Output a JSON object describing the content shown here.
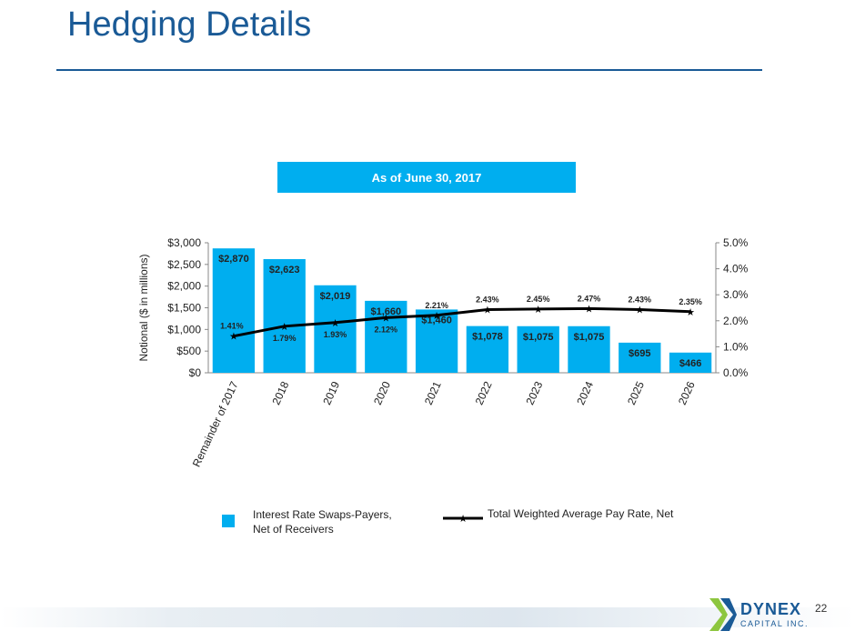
{
  "slide": {
    "title": "Hedging Details",
    "banner": "As of June 30, 2017",
    "page_number": "22",
    "logo_text": "DYNEX",
    "logo_sub": "CAPITAL INC."
  },
  "colors": {
    "bar": "#00aeef",
    "line": "#000000",
    "title": "#1a5a96"
  },
  "chart_data": {
    "type": "bar",
    "categories": [
      "Remainder of 2017",
      "2018",
      "2019",
      "2020",
      "2021",
      "2022",
      "2023",
      "2024",
      "2025",
      "2026"
    ],
    "series": [
      {
        "name": "Interest Rate Swaps-Payers, Net of Receivers",
        "type": "bar",
        "axis": "left",
        "values": [
          2870,
          2623,
          2019,
          1660,
          1460,
          1078,
          1075,
          1075,
          695,
          466
        ],
        "labels": [
          "$2,870",
          "$2,623",
          "$2,019",
          "$1,660",
          "$1,460",
          "$1,078",
          "$1,075",
          "$1,075",
          "$695",
          "$466"
        ]
      },
      {
        "name": "Total Weighted Average Pay Rate, Net",
        "type": "line",
        "axis": "right",
        "values": [
          1.41,
          1.79,
          1.93,
          2.12,
          2.21,
          2.43,
          2.45,
          2.47,
          2.43,
          2.35
        ],
        "labels": [
          "1.41%",
          "1.79%",
          "1.93%",
          "2.12%",
          "2.21%",
          "2.43%",
          "2.45%",
          "2.47%",
          "2.43%",
          "2.35%"
        ]
      }
    ],
    "ylabel": "Notional ($ in millions)",
    "ylim": [
      0,
      3000
    ],
    "yticks": [
      "$0",
      "$500",
      "$1,000",
      "$1,500",
      "$2,000",
      "$2,500",
      "$3,000"
    ],
    "y2lim": [
      0,
      5
    ],
    "y2ticks": [
      "0.0%",
      "1.0%",
      "2.0%",
      "3.0%",
      "4.0%",
      "5.0%"
    ],
    "legend": "bottom",
    "grid": false
  }
}
